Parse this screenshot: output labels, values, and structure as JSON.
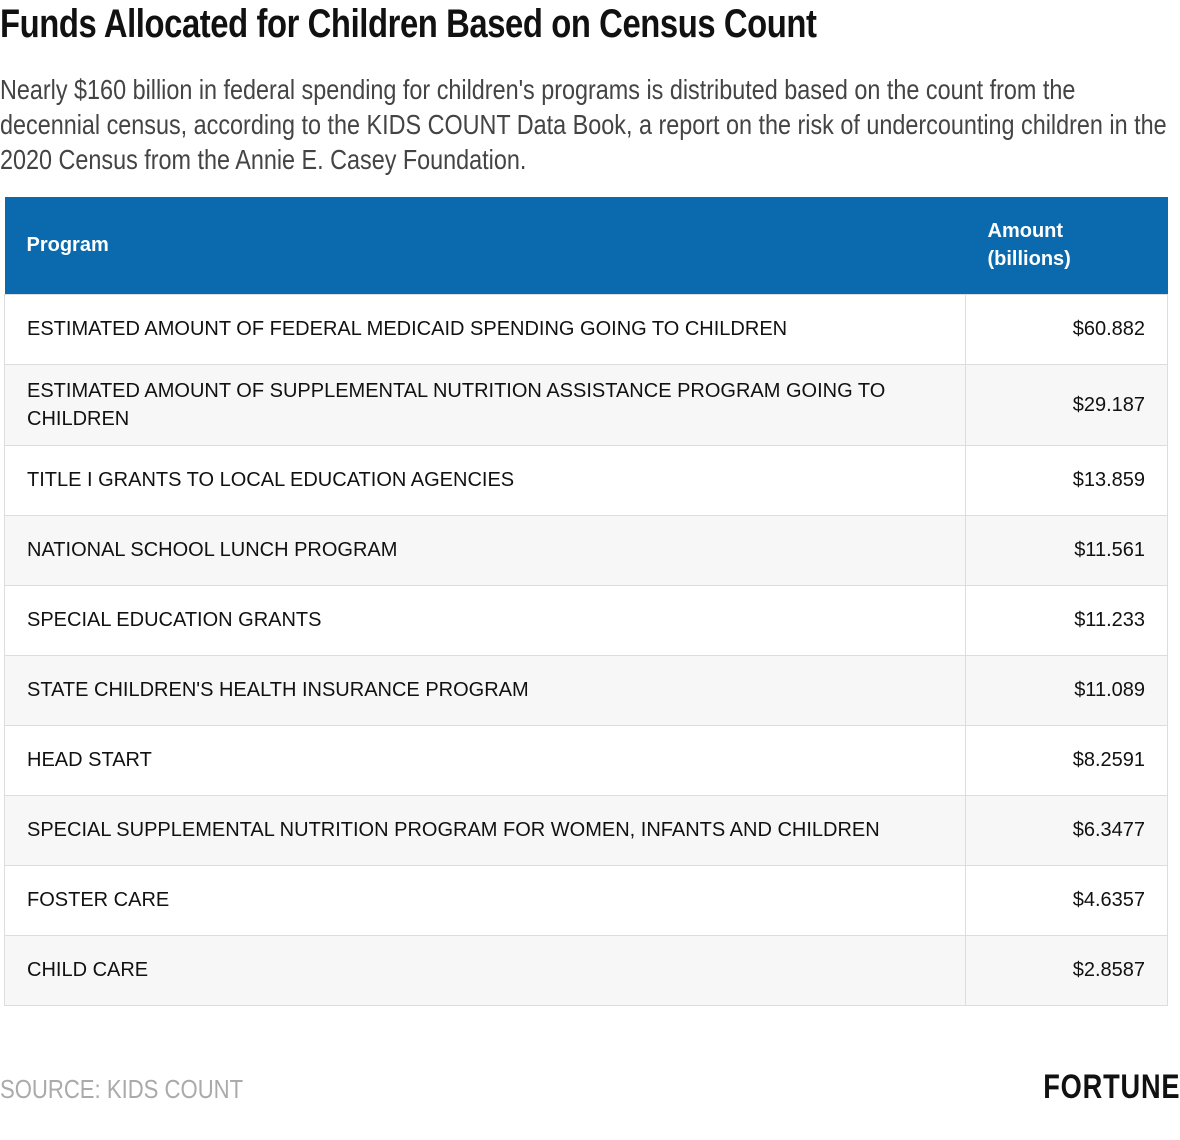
{
  "header": {
    "title": "Funds Allocated for Children Based on Census Count",
    "subtitle": "Nearly $160 billion in federal spending for children's programs is distributed based on the count from the decennial census, according to the KIDS COUNT Data Book, a report on the risk of undercounting children in the 2020 Census from the Annie E. Casey Foundation."
  },
  "table": {
    "columns": [
      "Program",
      "Amount (billions)"
    ],
    "rows": [
      [
        "ESTIMATED AMOUNT OF FEDERAL MEDICAID SPENDING GOING TO CHILDREN",
        "$60.882"
      ],
      [
        "ESTIMATED AMOUNT OF SUPPLEMENTAL NUTRITION ASSISTANCE PROGRAM GOING TO CHILDREN",
        "$29.187"
      ],
      [
        "TITLE I GRANTS TO LOCAL EDUCATION AGENCIES",
        "$13.859"
      ],
      [
        "NATIONAL SCHOOL LUNCH PROGRAM",
        "$11.561"
      ],
      [
        "SPECIAL EDUCATION GRANTS",
        "$11.233"
      ],
      [
        "STATE CHILDREN'S HEALTH INSURANCE PROGRAM",
        "$11.089"
      ],
      [
        "HEAD START",
        "$8.2591"
      ],
      [
        "SPECIAL SUPPLEMENTAL NUTRITION PROGRAM FOR WOMEN, INFANTS AND CHILDREN",
        "$6.3477"
      ],
      [
        "FOSTER CARE",
        "$4.6357"
      ],
      [
        "CHILD CARE",
        "$2.8587"
      ]
    ]
  },
  "footer": {
    "source": "SOURCE: KIDS COUNT",
    "brand": "FORTUNE"
  }
}
